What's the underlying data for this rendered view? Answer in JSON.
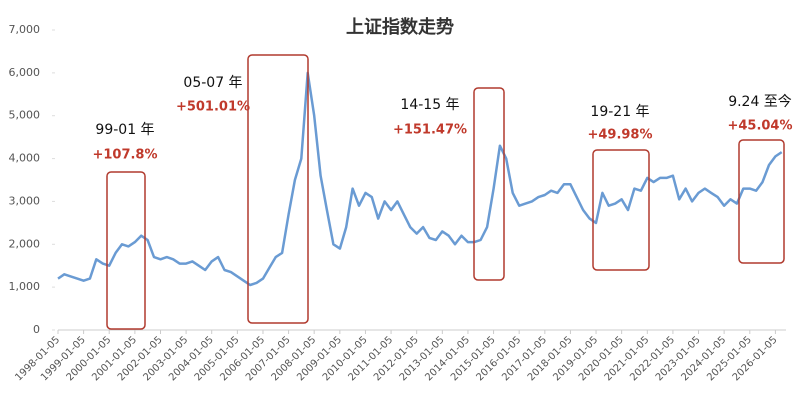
{
  "chart_data": {
    "type": "line",
    "title": "上证指数走势",
    "x": [
      "1998-01-05",
      "1998-04-05",
      "1998-07-05",
      "1998-10-05",
      "1999-01-05",
      "1999-04-05",
      "1999-07-05",
      "1999-10-05",
      "2000-01-05",
      "2000-04-05",
      "2000-07-05",
      "2000-10-05",
      "2001-01-05",
      "2001-04-05",
      "2001-07-05",
      "2001-10-05",
      "2002-01-05",
      "2002-04-05",
      "2002-07-05",
      "2002-10-05",
      "2003-01-05",
      "2003-04-05",
      "2003-07-05",
      "2003-10-05",
      "2004-01-05",
      "2004-04-05",
      "2004-07-05",
      "2004-10-05",
      "2005-01-05",
      "2005-04-05",
      "2005-07-05",
      "2005-10-05",
      "2006-01-05",
      "2006-04-05",
      "2006-07-05",
      "2006-10-05",
      "2007-01-05",
      "2007-04-05",
      "2007-07-05",
      "2007-10-05",
      "2008-01-05",
      "2008-04-05",
      "2008-07-05",
      "2008-10-05",
      "2009-01-05",
      "2009-04-05",
      "2009-07-05",
      "2009-10-05",
      "2010-01-05",
      "2010-04-05",
      "2010-07-05",
      "2010-10-05",
      "2011-01-05",
      "2011-04-05",
      "2011-07-05",
      "2011-10-05",
      "2012-01-05",
      "2012-04-05",
      "2012-07-05",
      "2012-10-05",
      "2013-01-05",
      "2013-04-05",
      "2013-07-05",
      "2013-10-05",
      "2014-01-05",
      "2014-04-05",
      "2014-07-05",
      "2014-10-05",
      "2015-01-05",
      "2015-04-05",
      "2015-07-05",
      "2015-10-05",
      "2016-01-05",
      "2016-04-05",
      "2016-07-05",
      "2016-10-05",
      "2017-01-05",
      "2017-04-05",
      "2017-07-05",
      "2017-10-05",
      "2018-01-05",
      "2018-04-05",
      "2018-07-05",
      "2018-10-05",
      "2019-01-05",
      "2019-04-05",
      "2019-07-05",
      "2019-10-05",
      "2020-01-05",
      "2020-04-05",
      "2020-07-05",
      "2020-10-05",
      "2021-01-05",
      "2021-04-05",
      "2021-07-05",
      "2021-10-05",
      "2022-01-05",
      "2022-04-05",
      "2022-07-05",
      "2022-10-05",
      "2023-01-05",
      "2023-04-05",
      "2023-07-05",
      "2023-10-05",
      "2024-01-05",
      "2024-04-05",
      "2024-07-05",
      "2024-10-05",
      "2025-01-05",
      "2025-04-05",
      "2025-07-05",
      "2025-10-05",
      "2026-01-05",
      "2026-04-05"
    ],
    "values": [
      1200,
      1300,
      1250,
      1200,
      1150,
      1200,
      1650,
      1550,
      1500,
      1800,
      2000,
      1950,
      2050,
      2200,
      2100,
      1700,
      1650,
      1700,
      1650,
      1550,
      1550,
      1600,
      1500,
      1400,
      1600,
      1700,
      1400,
      1350,
      1250,
      1150,
      1050,
      1100,
      1200,
      1450,
      1700,
      1800,
      2700,
      3500,
      4000,
      6000,
      5000,
      3600,
      2800,
      2000,
      1900,
      2400,
      3300,
      2900,
      3200,
      3100,
      2600,
      3000,
      2800,
      3000,
      2700,
      2400,
      2250,
      2400,
      2150,
      2100,
      2300,
      2200,
      2000,
      2200,
      2050,
      2050,
      2100,
      2400,
      3300,
      4300,
      4000,
      3200,
      2900,
      2950,
      3000,
      3100,
      3150,
      3250,
      3200,
      3400,
      3400,
      3100,
      2800,
      2600,
      2500,
      3200,
      2900,
      2950,
      3050,
      2800,
      3300,
      3250,
      3550,
      3450,
      3550,
      3550,
      3600,
      3050,
      3300,
      3000,
      3200,
      3300,
      3200,
      3100,
      2900,
      3050,
      2950,
      3300,
      3300,
      3250,
      3450,
      3850,
      4050,
      4150
    ],
    "color": "#6a9bd3",
    "xlim": [
      "1998-01-05",
      "2026-06-05"
    ],
    "xticks": [
      "1998-01-05",
      "1999-01-05",
      "2000-01-05",
      "2001-01-05",
      "2002-01-05",
      "2003-01-05",
      "2004-01-05",
      "2005-01-05",
      "2006-01-05",
      "2007-01-05",
      "2008-01-05",
      "2009-01-05",
      "2010-01-05",
      "2011-01-05",
      "2012-01-05",
      "2013-01-05",
      "2014-01-05",
      "2015-01-05",
      "2016-01-05",
      "2017-01-05",
      "2018-01-05",
      "2019-01-05",
      "2020-01-05",
      "2021-01-05",
      "2022-01-05",
      "2023-01-05",
      "2024-01-05",
      "2025-01-05",
      "2026-01-05"
    ],
    "ylim": [
      0,
      7000
    ],
    "yticks": [
      0,
      {
        "value": 1000,
        "label": "1,000"
      },
      {
        "value": 2000,
        "label": "2,000"
      },
      {
        "value": 3000,
        "label": "3,000"
      },
      {
        "value": 4000,
        "label": "4,000"
      },
      {
        "value": 5000,
        "label": "5,000"
      },
      {
        "value": 6000,
        "label": "6,000"
      },
      {
        "value": 7000,
        "label": "7,000"
      }
    ],
    "annotations": [
      {
        "period": "99-01 年",
        "change": "+107.8%"
      },
      {
        "period": "05-07 年",
        "change": "+501.01%"
      },
      {
        "period": "14-15 年",
        "change": "+151.47%"
      },
      {
        "period": "19-21 年",
        "change": "+49.98%"
      },
      {
        "period": "9.24 至今",
        "change": "+45.04%"
      }
    ]
  }
}
